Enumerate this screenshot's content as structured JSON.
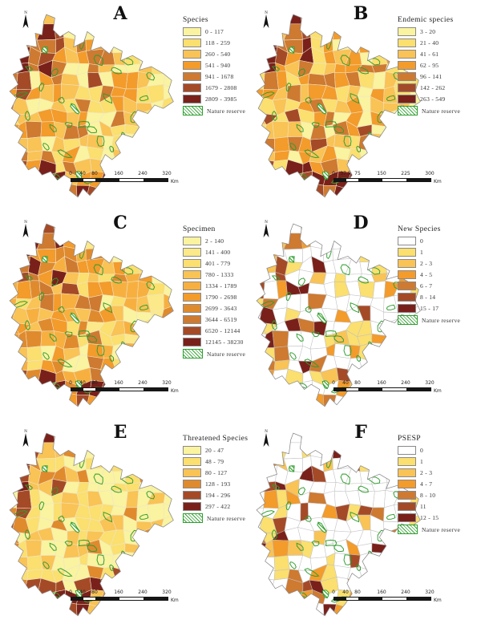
{
  "north": {
    "label": "N"
  },
  "style": {
    "reserve_green": "#2E9E2E",
    "outline_gray": "#8A8A8A",
    "cell_border_full": "#EDE5CC",
    "cell_border_sparse": "#C2C2C2",
    "scalebar_black": "#161616",
    "scalebar_white": "#FFFFFF"
  },
  "panels": [
    {
      "letter": "A",
      "legend_title": "Species",
      "mode": "full",
      "skew": 1.0,
      "seed": 11,
      "reserve_label": "Nature reserve",
      "classes": [
        {
          "label": "0 - 117",
          "color": "#FAF3A0"
        },
        {
          "label": "118 - 259",
          "color": "#FBDF6F"
        },
        {
          "label": "260 - 540",
          "color": "#F9C355"
        },
        {
          "label": "541 - 940",
          "color": "#F39B2B"
        },
        {
          "label": "941 - 1678",
          "color": "#CE7A31"
        },
        {
          "label": "1679 - 2808",
          "color": "#A54A27"
        },
        {
          "label": "2809 - 3985",
          "color": "#7A201A"
        }
      ],
      "scalebar": {
        "ticks": [
          "0",
          "40",
          "80",
          "160",
          "240",
          "320"
        ],
        "unit": "Km"
      }
    },
    {
      "letter": "B",
      "legend_title": "Endemic species",
      "mode": "full",
      "skew": 1.15,
      "seed": 112,
      "reserve_label": "Nature reserve",
      "classes": [
        {
          "label": "3 - 20",
          "color": "#FAF3A0"
        },
        {
          "label": "21 - 40",
          "color": "#FBDF6F"
        },
        {
          "label": "41 - 61",
          "color": "#F9C355"
        },
        {
          "label": "62 - 95",
          "color": "#F39B2B"
        },
        {
          "label": "96 - 141",
          "color": "#CE7A31"
        },
        {
          "label": "142 - 262",
          "color": "#A54A27"
        },
        {
          "label": "263 - 549",
          "color": "#7A201A"
        }
      ],
      "scalebar": {
        "ticks": [
          "0",
          "37.5",
          "75",
          "150",
          "225",
          "300"
        ],
        "unit": "Km"
      }
    },
    {
      "letter": "C",
      "legend_title": "Specimen",
      "mode": "full",
      "skew": 0.8,
      "seed": 213,
      "reserve_label": "Nature reserve",
      "classes": [
        {
          "label": "2 - 140",
          "color": "#FAF3A0"
        },
        {
          "label": "141 - 400",
          "color": "#FBE98A"
        },
        {
          "label": "401 - 779",
          "color": "#FBDF6F"
        },
        {
          "label": "780 - 1333",
          "color": "#F9C355"
        },
        {
          "label": "1334 - 1789",
          "color": "#F7B040"
        },
        {
          "label": "1790 - 2698",
          "color": "#F39B2B"
        },
        {
          "label": "2699 - 3643",
          "color": "#E08A2E"
        },
        {
          "label": "3644 - 6519",
          "color": "#CE7A31"
        },
        {
          "label": "6520 - 12144",
          "color": "#A54A27"
        },
        {
          "label": "12145 - 38230",
          "color": "#7A201A"
        }
      ],
      "scalebar": {
        "ticks": [
          "0",
          "40",
          "80",
          "160",
          "240",
          "320"
        ],
        "unit": "Km"
      }
    },
    {
      "letter": "D",
      "legend_title": "New Species",
      "mode": "sparse",
      "skew": 1.0,
      "seed": 314,
      "reserve_label": "Nature reserve",
      "classes": [
        {
          "label": "0",
          "color": "#FFFFFF"
        },
        {
          "label": "1",
          "color": "#FBDF6F"
        },
        {
          "label": "2 - 3",
          "color": "#F9C355"
        },
        {
          "label": "4 - 5",
          "color": "#F39B2B"
        },
        {
          "label": "6 - 7",
          "color": "#CE7A31"
        },
        {
          "label": "8 - 14",
          "color": "#A54A27"
        },
        {
          "label": "15 - 17",
          "color": "#7A201A"
        }
      ],
      "scalebar": {
        "ticks": [
          "0",
          "40",
          "80",
          "160",
          "240",
          "320"
        ],
        "unit": "Km"
      }
    },
    {
      "letter": "E",
      "legend_title": "Threatened Species",
      "mode": "full",
      "skew": 1.35,
      "seed": 415,
      "reserve_label": "Nature reserve",
      "classes": [
        {
          "label": "20 - 47",
          "color": "#FAF3A0"
        },
        {
          "label": "48 - 79",
          "color": "#FBDF6F"
        },
        {
          "label": "80 - 127",
          "color": "#F9C355"
        },
        {
          "label": "128 - 193",
          "color": "#E08A2E"
        },
        {
          "label": "194 - 296",
          "color": "#A54A27"
        },
        {
          "label": "297 - 422",
          "color": "#7A201A"
        }
      ],
      "scalebar": {
        "ticks": [
          "0",
          "40",
          "80",
          "160",
          "240",
          "320"
        ],
        "unit": "Km"
      }
    },
    {
      "letter": "F",
      "legend_title": "PSESP",
      "mode": "sparse",
      "skew": 1.0,
      "seed": 516,
      "reserve_label": "Nature reserve",
      "classes": [
        {
          "label": "0",
          "color": "#FFFFFF"
        },
        {
          "label": "1",
          "color": "#FBDF6F"
        },
        {
          "label": "2 - 3",
          "color": "#F9C355"
        },
        {
          "label": "4 - 7",
          "color": "#F39B2B"
        },
        {
          "label": "8 - 10",
          "color": "#CE7A31"
        },
        {
          "label": "11",
          "color": "#A54A27"
        },
        {
          "label": "12 - 15",
          "color": "#7A201A"
        }
      ],
      "scalebar": {
        "ticks": [
          "0",
          "40",
          "80",
          "160",
          "240",
          "320"
        ],
        "unit": "Km"
      }
    }
  ]
}
